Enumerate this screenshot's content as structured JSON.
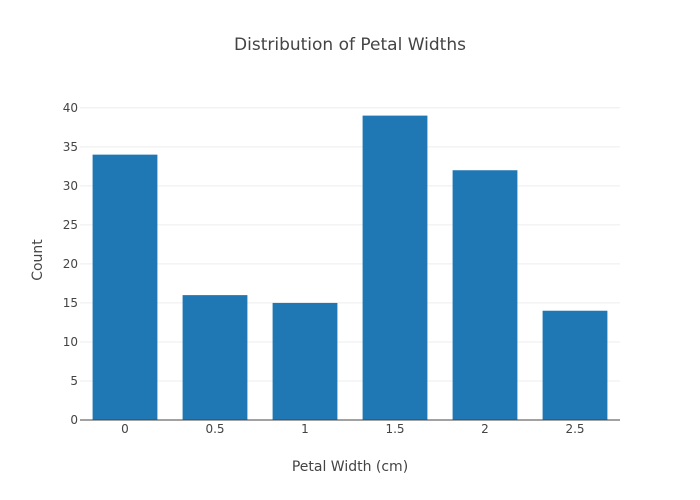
{
  "chart_data": {
    "type": "bar",
    "title": "Distribution of Petal Widths",
    "xlabel": "Petal Width (cm)",
    "ylabel": "Count",
    "categories": [
      "0",
      "0.5",
      "1",
      "1.5",
      "2",
      "2.5"
    ],
    "values": [
      34,
      16,
      15,
      39,
      32,
      14
    ],
    "ylim": [
      0,
      41
    ],
    "y_ticks": [
      0,
      5,
      10,
      15,
      20,
      25,
      30,
      35,
      40
    ],
    "grid": true,
    "bar_color": "#1f77b4"
  }
}
